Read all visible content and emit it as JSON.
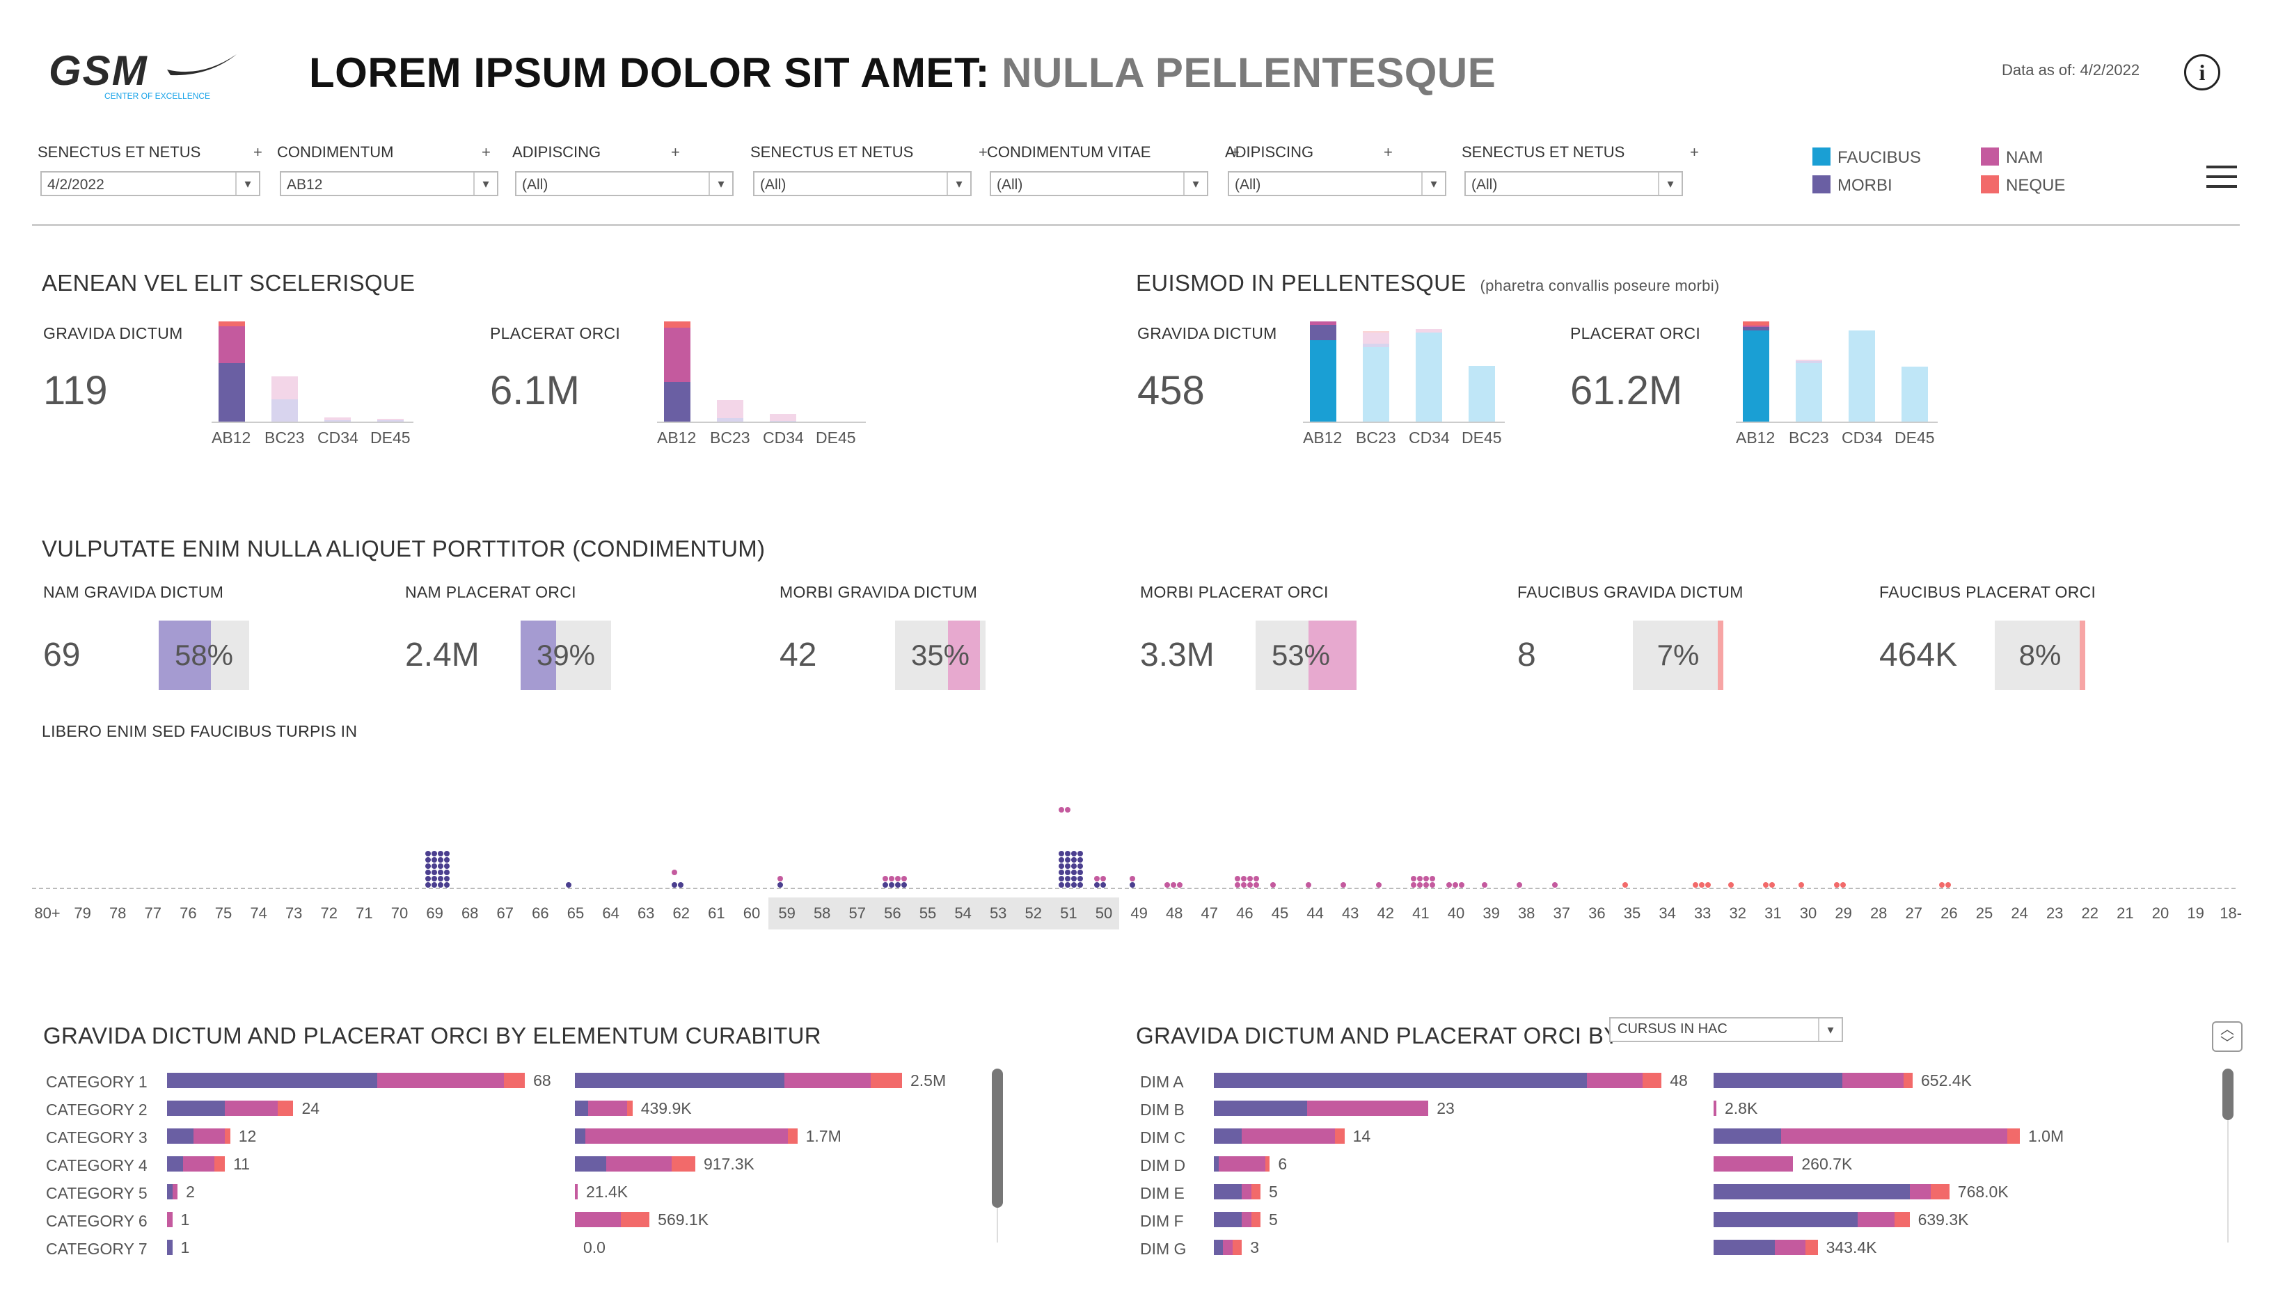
{
  "header": {
    "logo_text": "GSM",
    "logo_subtext": "CENTER OF EXCELLENCE",
    "title_main": "LOREM IPSUM DOLOR SIT AMET:",
    "title_sub": "NULLA PELLENTESQUE",
    "data_as_of": "Data as of: 4/2/2022",
    "info_icon": "info-icon"
  },
  "filters": [
    {
      "label": "SENECTUS ET NETUS",
      "value": "4/2/2022"
    },
    {
      "label": "CONDIMENTUM",
      "value": "AB12"
    },
    {
      "label": "ADIPISCING",
      "value": "(All)"
    },
    {
      "label": "SENECTUS ET NETUS",
      "value": "(All)"
    },
    {
      "label": "CONDIMENTUM VITAE",
      "value": "(All)"
    },
    {
      "label": "ADIPISCING",
      "value": "(All)"
    },
    {
      "label": "SENECTUS ET NETUS",
      "value": "(All)"
    }
  ],
  "legend": [
    {
      "label": "FAUCIBUS",
      "color": "#1a9fd4"
    },
    {
      "label": "MORBI",
      "color": "#6a5fa3"
    },
    {
      "label": "NAM",
      "color": "#c45a9e"
    },
    {
      "label": "NEQUE",
      "color": "#f26a6a"
    }
  ],
  "section1": {
    "title": "AENEAN VEL ELIT SCELERISQUE",
    "kpis": [
      {
        "label": "GRAVIDA DICTUM",
        "value": "119"
      },
      {
        "label": "PLACERAT ORCI",
        "value": "6.1M"
      }
    ],
    "categories": [
      "AB12",
      "BC23",
      "CD34",
      "DE45"
    ]
  },
  "section2": {
    "title": "EUISMOD IN PELLENTESQUE",
    "note": "(pharetra convallis poseure morbi)",
    "kpis": [
      {
        "label": "GRAVIDA DICTUM",
        "value": "458"
      },
      {
        "label": "PLACERAT ORCI",
        "value": "61.2M"
      }
    ],
    "categories": [
      "AB12",
      "BC23",
      "CD34",
      "DE45"
    ]
  },
  "section3": {
    "title": "VULPUTATE ENIM NULLA ALIQUET PORTTITOR (CONDIMENTUM)",
    "kpis": [
      {
        "label": "NAM GRAVIDA DICTUM",
        "value": "69",
        "pct": "58%",
        "pct_num": 58,
        "color": "#a59bd1"
      },
      {
        "label": "NAM PLACERAT ORCI",
        "value": "2.4M",
        "pct": "39%",
        "pct_num": 39,
        "color": "#a59bd1"
      },
      {
        "label": "MORBI GRAVIDA DICTUM",
        "value": "42",
        "pct": "35%",
        "pct_num": 35,
        "color": "#e7a9cf"
      },
      {
        "label": "MORBI PLACERAT ORCI",
        "value": "3.3M",
        "pct": "53%",
        "pct_num": 53,
        "color": "#e7a9cf"
      },
      {
        "label": "FAUCIBUS GRAVIDA DICTUM",
        "value": "8",
        "pct": "7%",
        "pct_num": 7,
        "color": "#f7a5a5"
      },
      {
        "label": "FAUCIBUS PLACERAT ORCI",
        "value": "464K",
        "pct": "8%",
        "pct_num": 8,
        "color": "#f7a5a5"
      }
    ]
  },
  "dotplot": {
    "title": "LIBERO ENIM SED FAUCIBUS TURPIS IN",
    "x_labels": [
      "80+",
      "79",
      "78",
      "77",
      "76",
      "75",
      "74",
      "73",
      "72",
      "71",
      "70",
      "69",
      "68",
      "67",
      "66",
      "65",
      "64",
      "63",
      "62",
      "61",
      "60",
      "59",
      "58",
      "57",
      "56",
      "55",
      "54",
      "53",
      "52",
      "51",
      "50",
      "49",
      "48",
      "47",
      "46",
      "45",
      "44",
      "43",
      "42",
      "41",
      "40",
      "39",
      "38",
      "37",
      "36",
      "35",
      "34",
      "33",
      "32",
      "31",
      "30",
      "29",
      "28",
      "27",
      "26",
      "25",
      "24",
      "23",
      "22",
      "21",
      "20",
      "19",
      "18-"
    ]
  },
  "chart_data": [
    {
      "type": "bar",
      "title": "GRAVIDA DICTUM",
      "categories": [
        "AB12",
        "BC23",
        "CD34",
        "DE45"
      ],
      "series": [
        {
          "name": "MORBI",
          "values": [
            45,
            17,
            1,
            1
          ]
        },
        {
          "name": "NAM",
          "values": [
            28,
            18,
            2,
            1
          ]
        },
        {
          "name": "NEQUE",
          "values": [
            4,
            0,
            0,
            0
          ]
        }
      ]
    },
    {
      "type": "bar",
      "title": "PLACERAT ORCI",
      "categories": [
        "AB12",
        "BC23",
        "CD34",
        "DE45"
      ],
      "series": [
        {
          "name": "MORBI",
          "values": [
            2.4,
            0.2,
            0.05,
            0
          ]
        },
        {
          "name": "NAM",
          "values": [
            3.3,
            1.1,
            0.4,
            0
          ]
        },
        {
          "name": "NEQUE",
          "values": [
            0.4,
            0,
            0,
            0
          ]
        }
      ]
    },
    {
      "type": "bar",
      "title": "GRAVIDA DICTUM",
      "categories": [
        "AB12",
        "BC23",
        "CD34",
        "DE45"
      ],
      "series": [
        {
          "name": "FAUCIBUS",
          "values": [
            110,
            100,
            120,
            75
          ]
        },
        {
          "name": "MORBI",
          "values": [
            20,
            5,
            0,
            0
          ]
        },
        {
          "name": "NAM",
          "values": [
            5,
            15,
            5,
            0
          ]
        },
        {
          "name": "NEQUE",
          "values": [
            0,
            2,
            0,
            0
          ]
        }
      ]
    },
    {
      "type": "bar",
      "title": "PLACERAT ORCI",
      "categories": [
        "AB12",
        "BC23",
        "CD34",
        "DE45"
      ],
      "series": [
        {
          "name": "FAUCIBUS",
          "values": [
            14,
            9,
            14,
            8.5
          ]
        },
        {
          "name": "MORBI",
          "values": [
            0.5,
            0.3,
            0,
            0
          ]
        },
        {
          "name": "NAM",
          "values": [
            0.3,
            0.2,
            0,
            0
          ]
        },
        {
          "name": "NEQUE",
          "values": [
            0.6,
            0,
            0,
            0
          ]
        }
      ]
    },
    {
      "type": "scatter",
      "title": "LIBERO ENIM SED FAUCIBUS TURPIS IN",
      "x": [
        "69",
        "65",
        "62",
        "59",
        "56",
        "51",
        "50",
        "49",
        "48",
        "46",
        "45",
        "44",
        "43",
        "42",
        "41",
        "40",
        "39",
        "38",
        "37",
        "35",
        "33",
        "32",
        "31",
        "30",
        "29",
        "26"
      ],
      "counts": [
        [
          [
            24,
            0,
            0,
            0
          ]
        ],
        [
          [
            1,
            0,
            0,
            0
          ]
        ],
        [
          [
            2,
            1,
            0,
            0
          ]
        ],
        [
          [
            1,
            1,
            0,
            0
          ]
        ],
        [
          [
            4,
            4,
            0,
            0
          ]
        ],
        [
          [
            24,
            2,
            0,
            0
          ]
        ],
        [
          [
            2,
            2,
            0,
            0
          ]
        ],
        [
          [
            1,
            1,
            0,
            0
          ]
        ],
        [
          [
            0,
            3,
            0,
            0
          ]
        ],
        [
          [
            0,
            8,
            0,
            0
          ]
        ],
        [
          [
            0,
            1,
            0,
            0
          ]
        ],
        [
          [
            0,
            1,
            0,
            0
          ]
        ],
        [
          [
            0,
            1,
            0,
            0
          ]
        ],
        [
          [
            0,
            1,
            0,
            0
          ]
        ],
        [
          [
            0,
            8,
            0,
            0
          ]
        ],
        [
          [
            0,
            3,
            0,
            0
          ]
        ],
        [
          [
            0,
            1,
            0,
            0
          ]
        ],
        [
          [
            0,
            1,
            0,
            0
          ]
        ],
        [
          [
            0,
            1,
            0,
            0
          ]
        ],
        [
          [
            0,
            0,
            1,
            0
          ]
        ],
        [
          [
            0,
            0,
            3,
            0
          ]
        ],
        [
          [
            0,
            0,
            1,
            0
          ]
        ],
        [
          [
            0,
            0,
            2,
            0
          ]
        ],
        [
          [
            0,
            0,
            1,
            0
          ]
        ],
        [
          [
            0,
            0,
            2,
            0
          ]
        ],
        [
          [
            0,
            0,
            2,
            0
          ]
        ]
      ]
    },
    {
      "type": "bar",
      "title": "GRAVIDA DICTUM AND PLACERAT ORCI BY ELEMENTUM CURABITUR",
      "categories": [
        "CATEGORY 1",
        "CATEGORY 2",
        "CATEGORY 3",
        "CATEGORY 4",
        "CATEGORY 5",
        "CATEGORY 6",
        "CATEGORY 7"
      ],
      "gravida": {
        "totals": [
          "68",
          "24",
          "12",
          "11",
          "2",
          "1",
          "1"
        ],
        "series": [
          {
            "name": "MORBI",
            "values": [
              40,
              11,
              5,
              3,
              1,
              0,
              1
            ]
          },
          {
            "name": "NAM",
            "values": [
              24,
              10,
              6,
              6,
              1,
              1,
              0
            ]
          },
          {
            "name": "NEQUE",
            "values": [
              4,
              3,
              1,
              2,
              0,
              0,
              0
            ]
          }
        ]
      },
      "placerat": {
        "totals": [
          "2.5M",
          "439.9K",
          "1.7M",
          "917.3K",
          "21.4K",
          "569.1K",
          "0.0"
        ],
        "series": [
          {
            "name": "MORBI",
            "values": [
              1.6,
              0.1,
              0.08,
              0.24,
              0,
              0,
              0
            ]
          },
          {
            "name": "NAM",
            "values": [
              0.66,
              0.3,
              1.55,
              0.5,
              0.02,
              0.35,
              0
            ]
          },
          {
            "name": "NEQUE",
            "values": [
              0.24,
              0.04,
              0.07,
              0.18,
              0,
              0.22,
              0
            ]
          }
        ]
      }
    },
    {
      "type": "bar",
      "title": "GRAVIDA DICTUM AND PLACERAT ORCI BY",
      "dropdown": "CURSUS IN HAC",
      "categories": [
        "DIM A",
        "DIM B",
        "DIM C",
        "DIM D",
        "DIM E",
        "DIM F",
        "DIM G"
      ],
      "gravida": {
        "totals": [
          "48",
          "23",
          "14",
          "6",
          "5",
          "5",
          "3"
        ],
        "series": [
          {
            "name": "MORBI",
            "values": [
              40,
              10,
              3,
              0.5,
              3,
              3,
              1
            ]
          },
          {
            "name": "NAM",
            "values": [
              6,
              13,
              10,
              5,
              1,
              1,
              1
            ]
          },
          {
            "name": "NEQUE",
            "values": [
              2,
              0,
              1,
              0.5,
              1,
              1,
              1
            ]
          }
        ]
      },
      "placerat": {
        "totals": [
          "652.4K",
          "2.8K",
          "1.0M",
          "260.7K",
          "768.0K",
          "639.3K",
          "343.4K"
        ],
        "series": [
          {
            "name": "MORBI",
            "values": [
              0.42,
              0,
              0.22,
              0,
              0.64,
              0.47,
              0.2
            ]
          },
          {
            "name": "NAM",
            "values": [
              0.2,
              0.003,
              0.74,
              0.26,
              0.07,
              0.12,
              0.1
            ]
          },
          {
            "name": "NEQUE",
            "values": [
              0.03,
              0,
              0.04,
              0,
              0.06,
              0.05,
              0.04
            ]
          }
        ]
      }
    }
  ]
}
